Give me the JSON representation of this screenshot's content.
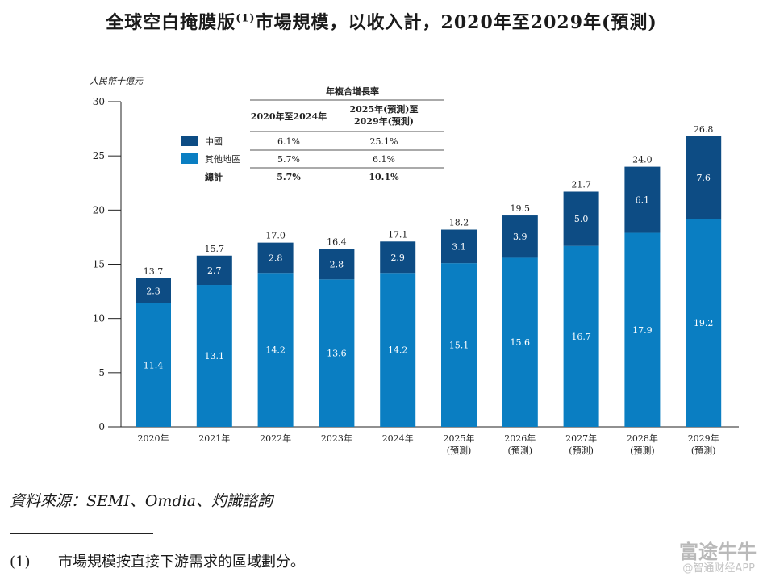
{
  "title": {
    "main": "全球空白掩膜版",
    "superscript": "(1)",
    "rest": "市場規模，以收入計，2020年至2029年(預測)"
  },
  "chart_data": {
    "type": "bar",
    "stacked": true,
    "ylabel": "人民幣十億元",
    "ylim": [
      0,
      30
    ],
    "yticks": [
      0,
      5,
      10,
      15,
      20,
      25,
      30
    ],
    "categories": [
      [
        "2020年"
      ],
      [
        "2021年"
      ],
      [
        "2022年"
      ],
      [
        "2023年"
      ],
      [
        "2024年"
      ],
      [
        "2025年",
        "(預測)"
      ],
      [
        "2026年",
        "(預測)"
      ],
      [
        "2027年",
        "(預測)"
      ],
      [
        "2028年",
        "(預測)"
      ],
      [
        "2029年",
        "(預測)"
      ]
    ],
    "series": [
      {
        "name": "其他地區",
        "color": "#0a7ec2",
        "values": [
          11.4,
          13.1,
          14.2,
          13.6,
          14.2,
          15.1,
          15.6,
          16.7,
          17.9,
          19.2
        ]
      },
      {
        "name": "中國",
        "color": "#0d4c84",
        "values": [
          2.3,
          2.7,
          2.8,
          2.8,
          2.9,
          3.1,
          3.9,
          5.0,
          6.1,
          7.6
        ]
      }
    ],
    "totals": [
      13.7,
      15.7,
      17.0,
      16.4,
      17.1,
      18.2,
      19.5,
      21.7,
      24.0,
      26.8
    ],
    "legend_position": "top-left",
    "cagr_table": {
      "title": "年複合增長率",
      "col1": "2020年至2024年",
      "col2_line1": "2025年(預測)至",
      "col2_line2": "2029年(預測)",
      "rows": [
        {
          "label": "中國",
          "v1": "6.1%",
          "v2": "25.1%"
        },
        {
          "label": "其他地區",
          "v1": "5.7%",
          "v2": "6.1%"
        },
        {
          "label": "總計",
          "v1": "5.7%",
          "v2": "10.1%"
        }
      ]
    }
  },
  "source": "資料來源：SEMI、Omdia、灼識諮詢",
  "footnote": {
    "num": "(1)",
    "text": "市場規模按直接下游需求的區域劃分。"
  },
  "watermark": {
    "brand": "富途牛牛",
    "sub": "@智通财经APP"
  }
}
